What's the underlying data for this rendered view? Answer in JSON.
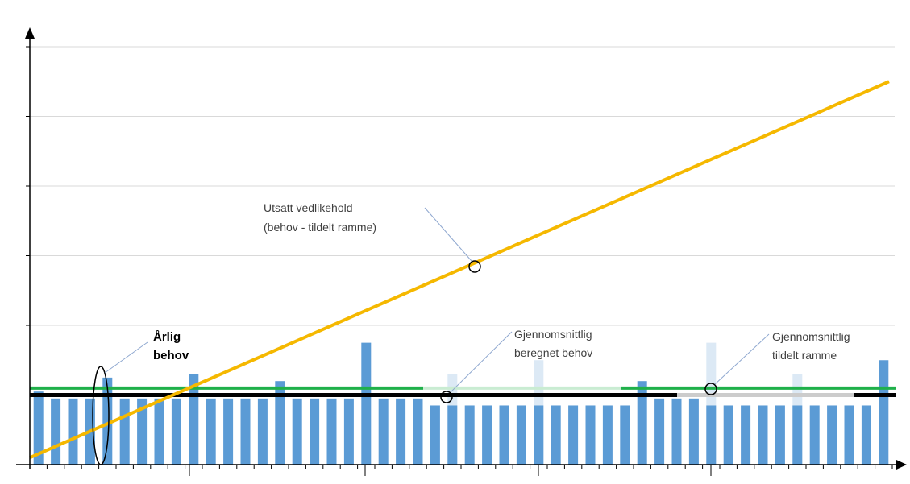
{
  "chart_data": {
    "type": "bar",
    "title": "",
    "xlabel": "",
    "ylabel": "",
    "grid": true,
    "ylim": [
      0,
      6
    ],
    "bar_values": [
      1.05,
      0.95,
      0.95,
      0.95,
      1.25,
      0.95,
      0.95,
      0.95,
      0.95,
      1.3,
      0.95,
      0.95,
      0.95,
      0.95,
      1.2,
      0.95,
      0.95,
      0.95,
      0.95,
      1.75,
      0.95,
      0.95,
      0.95,
      0.85,
      0.85,
      0.85,
      0.85,
      0.85,
      0.85,
      0.85,
      0.85,
      0.85,
      0.85,
      0.85,
      0.85,
      1.2,
      0.95,
      0.95,
      0.95,
      0.85,
      0.85,
      0.85,
      0.85,
      0.85,
      0.85,
      0.85,
      0.85,
      0.85,
      0.85,
      1.5
    ],
    "faded_bar_values": [
      [
        24,
        1.3
      ],
      [
        29,
        1.5
      ],
      [
        39,
        1.75
      ],
      [
        44,
        1.3
      ]
    ],
    "series": [
      {
        "type": "line",
        "values_start_end": [
          0.1,
          5.5
        ]
      },
      {
        "type": "line",
        "values_start_end": [
          1.1,
          1.1
        ]
      },
      {
        "type": "line",
        "values_start_end": [
          1.0,
          1.0
        ]
      }
    ]
  },
  "labels": {
    "annual_need": [
      "Årlig",
      "behov"
    ],
    "deferred_maintenance": [
      "Utsatt vedlikehold",
      "(behov - tildelt ramme)"
    ],
    "avg_calculated_need": [
      "Gjennomsnittlig",
      "beregnet behov"
    ],
    "avg_allocated_frame": [
      "Gjennomsnittlig",
      "tildelt ramme"
    ]
  },
  "colors": {
    "bars": "#5b9bd5",
    "bars_faded": "#dce9f5",
    "deferred_line": "#f5b800",
    "allocated_line": "#1fb04a",
    "allocated_line_faded": "#c9ecd2",
    "need_line": "#000000",
    "gridlines": "#d9d9d9",
    "callout": "#8fa8d0"
  }
}
